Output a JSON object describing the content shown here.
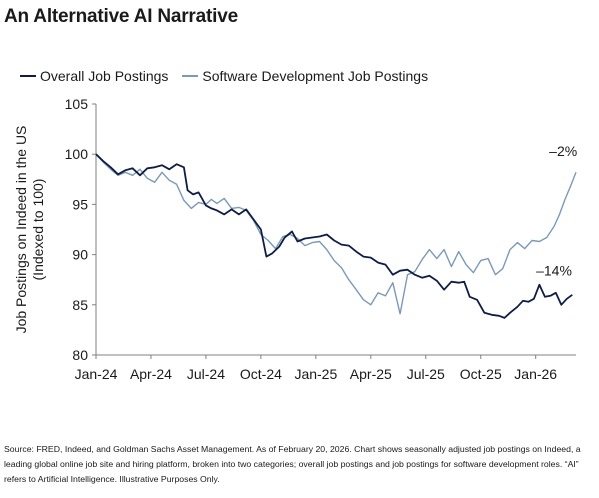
{
  "chart_data": {
    "type": "line",
    "title": "An Alternative AI Narrative",
    "ylabel_lines": [
      "Job Postings on Indeed in the US",
      "(Indexed to 100)"
    ],
    "ylim": [
      80,
      105
    ],
    "yticks": [
      80,
      85,
      90,
      95,
      100,
      105
    ],
    "xlim": [
      0,
      26.2
    ],
    "xticks": [
      {
        "label": "Jan-24",
        "x": 0
      },
      {
        "label": "Apr-24",
        "x": 3
      },
      {
        "label": "Jul-24",
        "x": 6
      },
      {
        "label": "Oct-24",
        "x": 9
      },
      {
        "label": "Jan-25",
        "x": 12
      },
      {
        "label": "Apr-25",
        "x": 15
      },
      {
        "label": "Jul-25",
        "x": 18
      },
      {
        "label": "Oct-25",
        "x": 21
      },
      {
        "label": "Jan-26",
        "x": 24
      }
    ],
    "legend_position": "top-left",
    "series": [
      {
        "name": "Overall Job Postings",
        "color": "#0f1d45",
        "points": [
          [
            0,
            100
          ],
          [
            0.4,
            99.3
          ],
          [
            0.8,
            98.7
          ],
          [
            1.2,
            98.0
          ],
          [
            1.6,
            98.4
          ],
          [
            2.0,
            98.6
          ],
          [
            2.4,
            97.9
          ],
          [
            2.8,
            98.6
          ],
          [
            3.2,
            98.7
          ],
          [
            3.6,
            98.9
          ],
          [
            4.0,
            98.5
          ],
          [
            4.4,
            99.0
          ],
          [
            4.8,
            98.7
          ],
          [
            5.0,
            96.4
          ],
          [
            5.3,
            96.0
          ],
          [
            5.6,
            96.2
          ],
          [
            6.0,
            94.9
          ],
          [
            6.3,
            94.6
          ],
          [
            6.6,
            94.4
          ],
          [
            7.0,
            94.0
          ],
          [
            7.4,
            94.5
          ],
          [
            7.8,
            94.0
          ],
          [
            8.2,
            94.5
          ],
          [
            8.6,
            93.5
          ],
          [
            9.0,
            92.5
          ],
          [
            9.3,
            89.8
          ],
          [
            9.6,
            90.1
          ],
          [
            10.0,
            90.8
          ],
          [
            10.3,
            91.7
          ],
          [
            10.7,
            92.3
          ],
          [
            11.0,
            91.3
          ],
          [
            11.4,
            91.6
          ],
          [
            11.8,
            91.7
          ],
          [
            12.2,
            91.8
          ],
          [
            12.6,
            92.0
          ],
          [
            13.0,
            91.4
          ],
          [
            13.4,
            91.0
          ],
          [
            13.8,
            90.9
          ],
          [
            14.2,
            90.3
          ],
          [
            14.6,
            89.8
          ],
          [
            15.0,
            89.7
          ],
          [
            15.4,
            89.2
          ],
          [
            15.8,
            89.0
          ],
          [
            16.2,
            88.0
          ],
          [
            16.6,
            88.4
          ],
          [
            17.0,
            88.5
          ],
          [
            17.4,
            88.0
          ],
          [
            17.8,
            87.7
          ],
          [
            18.2,
            87.9
          ],
          [
            18.6,
            87.4
          ],
          [
            19.0,
            86.5
          ],
          [
            19.4,
            87.3
          ],
          [
            19.8,
            87.2
          ],
          [
            20.1,
            87.3
          ],
          [
            20.4,
            85.8
          ],
          [
            20.8,
            85.5
          ],
          [
            21.2,
            84.2
          ],
          [
            21.6,
            84.0
          ],
          [
            22.0,
            83.9
          ],
          [
            22.3,
            83.7
          ],
          [
            22.6,
            84.2
          ],
          [
            23.0,
            84.8
          ],
          [
            23.3,
            85.4
          ],
          [
            23.6,
            85.3
          ],
          [
            23.9,
            85.6
          ],
          [
            24.2,
            87.0
          ],
          [
            24.5,
            85.8
          ],
          [
            24.8,
            85.9
          ],
          [
            25.1,
            86.2
          ],
          [
            25.4,
            85.0
          ],
          [
            25.7,
            85.6
          ],
          [
            26.0,
            86.0
          ]
        ]
      },
      {
        "name": "Software Development Job Postings",
        "color": "#7b9ab8",
        "points": [
          [
            0,
            100
          ],
          [
            0.4,
            99.2
          ],
          [
            0.8,
            98.5
          ],
          [
            1.2,
            97.9
          ],
          [
            1.6,
            98.2
          ],
          [
            2.0,
            97.9
          ],
          [
            2.4,
            98.5
          ],
          [
            2.8,
            97.6
          ],
          [
            3.2,
            97.2
          ],
          [
            3.6,
            98.2
          ],
          [
            4.0,
            97.4
          ],
          [
            4.4,
            97.0
          ],
          [
            4.8,
            95.4
          ],
          [
            5.2,
            94.6
          ],
          [
            5.6,
            95.2
          ],
          [
            6.0,
            95.0
          ],
          [
            6.3,
            95.5
          ],
          [
            6.6,
            95.1
          ],
          [
            7.0,
            95.6
          ],
          [
            7.4,
            94.6
          ],
          [
            7.8,
            94.7
          ],
          [
            8.2,
            94.4
          ],
          [
            8.6,
            93.4
          ],
          [
            9.0,
            92.0
          ],
          [
            9.4,
            91.4
          ],
          [
            9.8,
            90.6
          ],
          [
            10.2,
            91.8
          ],
          [
            10.6,
            92.0
          ],
          [
            11.0,
            91.6
          ],
          [
            11.4,
            90.9
          ],
          [
            11.8,
            91.2
          ],
          [
            12.2,
            91.3
          ],
          [
            12.6,
            90.5
          ],
          [
            13.0,
            89.4
          ],
          [
            13.4,
            88.7
          ],
          [
            13.8,
            87.5
          ],
          [
            14.2,
            86.5
          ],
          [
            14.6,
            85.5
          ],
          [
            15.0,
            85.0
          ],
          [
            15.4,
            86.2
          ],
          [
            15.8,
            85.9
          ],
          [
            16.2,
            87.2
          ],
          [
            16.6,
            84.1
          ],
          [
            17.0,
            88.0
          ],
          [
            17.4,
            88.3
          ],
          [
            17.8,
            89.5
          ],
          [
            18.2,
            90.5
          ],
          [
            18.6,
            89.6
          ],
          [
            19.0,
            90.5
          ],
          [
            19.4,
            88.8
          ],
          [
            19.8,
            90.3
          ],
          [
            20.2,
            89.0
          ],
          [
            20.6,
            88.2
          ],
          [
            21.0,
            89.4
          ],
          [
            21.4,
            89.6
          ],
          [
            21.8,
            88.0
          ],
          [
            22.2,
            88.6
          ],
          [
            22.6,
            90.5
          ],
          [
            23.0,
            91.2
          ],
          [
            23.4,
            90.6
          ],
          [
            23.8,
            91.4
          ],
          [
            24.2,
            91.3
          ],
          [
            24.6,
            91.7
          ],
          [
            25.0,
            92.8
          ],
          [
            25.3,
            94.0
          ],
          [
            25.6,
            95.5
          ],
          [
            25.9,
            96.8
          ],
          [
            26.2,
            98.2
          ]
        ]
      }
    ],
    "annotations": [
      {
        "text": "–2%",
        "x": 25.5,
        "y": 99.8
      },
      {
        "text": "–14%",
        "x": 25.0,
        "y": 87.9
      }
    ]
  },
  "source_text": "Source: FRED, Indeed, and Goldman Sachs Asset Management. As of February 20, 2026. Chart shows seasonally adjusted job postings on Indeed, a leading global online job site and hiring platform, broken into two categories; overall job postings and job postings for software development roles. “AI” refers to Artificial Intelligence. Illustrative Purposes Only."
}
